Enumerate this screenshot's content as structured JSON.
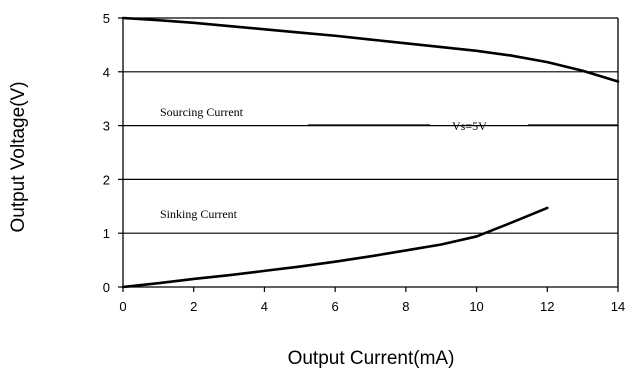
{
  "chart_data": {
    "type": "line",
    "title": "",
    "xlabel": "Output Current(mA)",
    "ylabel": "Output Voltage(V)",
    "xlim": [
      0,
      14
    ],
    "ylim": [
      0,
      5
    ],
    "x_ticks": [
      "0",
      "2",
      "4",
      "6",
      "8",
      "10",
      "12",
      "14"
    ],
    "y_ticks": [
      "0",
      "1",
      "2",
      "3",
      "4",
      "5"
    ],
    "grid": "horizontal",
    "series": [
      {
        "name": "Sourcing Current",
        "x": [
          0,
          1,
          2,
          3,
          4,
          5,
          6,
          7,
          8,
          9,
          10,
          11,
          12,
          13,
          14
        ],
        "y": [
          5.0,
          4.96,
          4.91,
          4.85,
          4.79,
          4.73,
          4.67,
          4.6,
          4.53,
          4.46,
          4.39,
          4.3,
          4.18,
          4.02,
          3.82
        ]
      },
      {
        "name": "Sinking Current",
        "x": [
          0,
          1,
          2,
          3,
          4,
          5,
          6,
          7,
          8,
          9,
          10,
          11,
          12
        ],
        "y": [
          0.0,
          0.07,
          0.15,
          0.22,
          0.3,
          0.38,
          0.47,
          0.57,
          0.68,
          0.79,
          0.94,
          1.2,
          1.47
        ]
      }
    ],
    "annotations": [
      "Vs=5V"
    ],
    "color": "#000000"
  }
}
